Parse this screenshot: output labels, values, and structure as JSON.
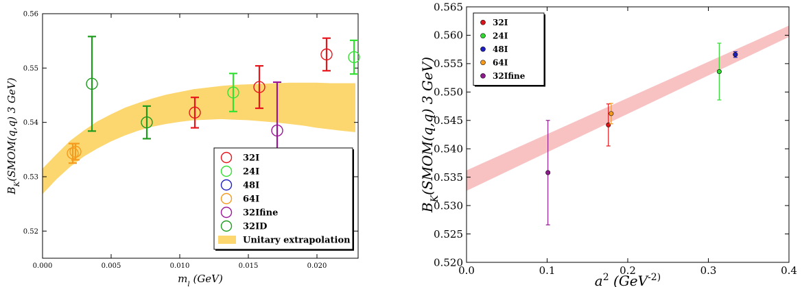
{
  "chart_data": [
    {
      "type": "scatter",
      "title": "",
      "xlabel": "m_l (GeV)",
      "ylabel": "B_K(SMOM(q,q) 3 GeV)",
      "xlim": [
        0.0,
        0.023
      ],
      "ylim": [
        0.515,
        0.56
      ],
      "xticks": [
        "0.000",
        "0.005",
        "0.010",
        "0.015",
        "0.020"
      ],
      "yticks": [
        "0.52",
        "0.53",
        "0.54",
        "0.55",
        "0.56"
      ],
      "grid": false,
      "legend_position": "bottom-right",
      "series": [
        {
          "name": "32I",
          "color": "#e8141b",
          "marker": "circle",
          "points": [
            {
              "x": 0.0111,
              "y": 0.5418,
              "err": 0.0028
            },
            {
              "x": 0.0158,
              "y": 0.5465,
              "err": 0.0039
            },
            {
              "x": 0.0207,
              "y": 0.5525,
              "err": 0.003
            }
          ]
        },
        {
          "name": "24I",
          "color": "#33e133",
          "marker": "circle",
          "points": [
            {
              "x": 0.0139,
              "y": 0.5455,
              "err": 0.0035
            },
            {
              "x": 0.0227,
              "y": 0.552,
              "err": 0.0031
            }
          ]
        },
        {
          "name": "48I",
          "color": "#2020c0",
          "marker": "circle",
          "points": []
        },
        {
          "name": "64I",
          "color": "#f59a1c",
          "marker": "circle",
          "points": [
            {
              "x": 0.0022,
              "y": 0.5343,
              "err": 0.0018
            },
            {
              "x": 0.0024,
              "y": 0.5346,
              "err": 0.0015
            }
          ]
        },
        {
          "name": "32Ifine",
          "color": "#9a1597",
          "marker": "circle",
          "points": [
            {
              "x": 0.0171,
              "y": 0.5385,
              "err": 0.0089
            }
          ]
        },
        {
          "name": "32ID",
          "color": "#1e9b1e",
          "marker": "circle",
          "points": [
            {
              "x": 0.0036,
              "y": 0.5471,
              "err": 0.0087
            },
            {
              "x": 0.0076,
              "y": 0.54,
              "err": 0.003
            }
          ]
        }
      ],
      "band": {
        "name": "Unitary extrapolation",
        "color": "#fcd66e",
        "x": [
          0.0,
          0.001,
          0.002,
          0.003,
          0.004,
          0.005,
          0.006,
          0.007,
          0.008,
          0.009,
          0.01,
          0.011,
          0.012,
          0.013,
          0.014,
          0.015,
          0.016,
          0.017,
          0.018,
          0.019,
          0.02,
          0.021,
          0.022,
          0.0228
        ],
        "lower": [
          0.5268,
          0.5295,
          0.5318,
          0.5337,
          0.5352,
          0.5365,
          0.5376,
          0.5385,
          0.5392,
          0.5397,
          0.5401,
          0.5404,
          0.5405,
          0.5406,
          0.5405,
          0.5404,
          0.5402,
          0.54,
          0.5397,
          0.5394,
          0.539,
          0.5387,
          0.5384,
          0.5382
        ],
        "upper": [
          0.5315,
          0.5341,
          0.5366,
          0.5385,
          0.5402,
          0.5415,
          0.5427,
          0.5436,
          0.5444,
          0.5451,
          0.5456,
          0.5461,
          0.5464,
          0.5467,
          0.5469,
          0.547,
          0.5471,
          0.5472,
          0.5473,
          0.5473,
          0.5473,
          0.5472,
          0.5472,
          0.5472
        ]
      },
      "legend": [
        "32I",
        "24I",
        "48I",
        "64I",
        "32Ifine",
        "32ID",
        "Unitary extrapolation"
      ]
    },
    {
      "type": "scatter",
      "title": "",
      "xlabel": "a^2 (GeV^-2)",
      "ylabel": "B_K(SMOM(q,q) 3 GeV)",
      "xlim": [
        0.0,
        0.4
      ],
      "ylim": [
        0.52,
        0.565
      ],
      "xticks": [
        "0.0",
        "0.1",
        "0.2",
        "0.3",
        "0.4"
      ],
      "yticks": [
        "0.520",
        "0.525",
        "0.530",
        "0.535",
        "0.540",
        "0.545",
        "0.550",
        "0.555",
        "0.560",
        "0.565"
      ],
      "grid": false,
      "legend_position": "top-left",
      "series": [
        {
          "name": "32I",
          "color": "#d9151b",
          "points": [
            {
              "x": 0.176,
              "y": 0.5442,
              "err": 0.0037
            }
          ]
        },
        {
          "name": "24I",
          "color": "#33d633",
          "points": [
            {
              "x": 0.3135,
              "y": 0.5536,
              "err": 0.005
            }
          ]
        },
        {
          "name": "48I",
          "color": "#1f1fbf",
          "points": [
            {
              "x": 0.3335,
              "y": 0.5566,
              "err": 0.0005
            }
          ]
        },
        {
          "name": "64I",
          "color": "#f59a1c",
          "points": [
            {
              "x": 0.1795,
              "y": 0.5462,
              "err": 0.0018
            }
          ]
        },
        {
          "name": "32Ifine",
          "color": "#8c1c8c",
          "points": [
            {
              "x": 0.101,
              "y": 0.5358,
              "err": 0.0092
            }
          ]
        }
      ],
      "band": {
        "name": "",
        "color": "#f8c2c2",
        "x": [
          0.0,
          0.4
        ],
        "lower": [
          0.5326,
          0.5597
        ],
        "upper": [
          0.5362,
          0.5617
        ]
      },
      "legend": [
        "32I",
        "24I",
        "48I",
        "64I",
        "32Ifine"
      ]
    }
  ]
}
